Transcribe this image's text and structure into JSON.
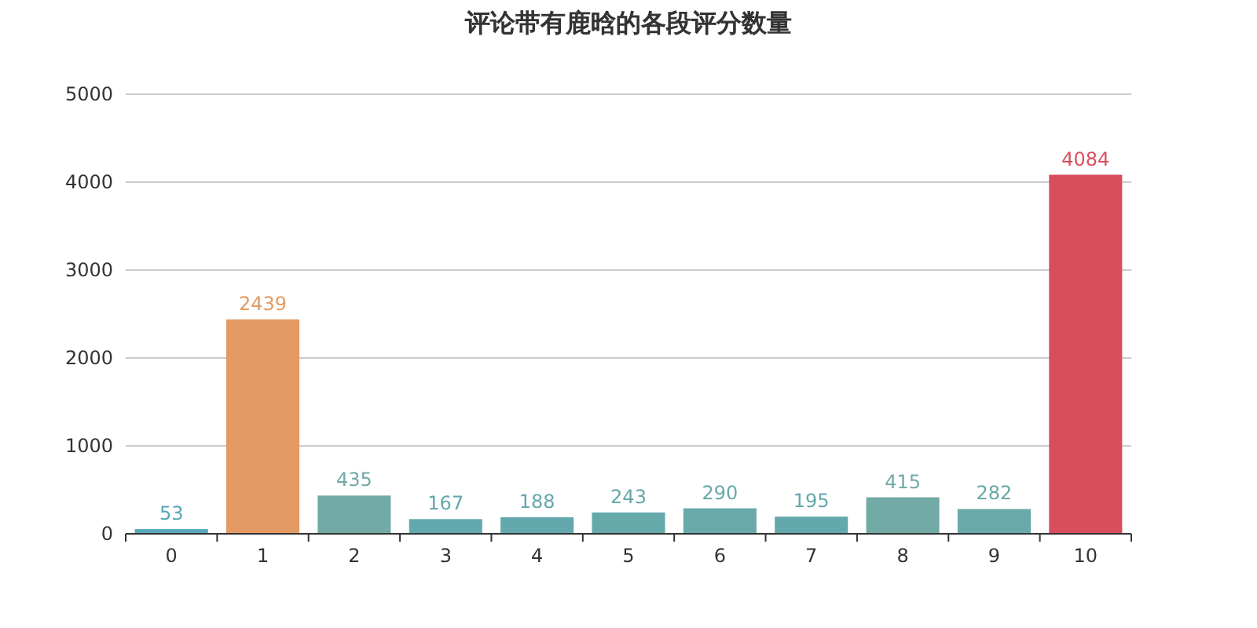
{
  "chart_data": {
    "type": "bar",
    "title": "评论带有鹿晗的各段评分数量",
    "categories": [
      "0",
      "1",
      "2",
      "3",
      "4",
      "5",
      "6",
      "7",
      "8",
      "9",
      "10"
    ],
    "values": [
      53,
      2439,
      435,
      167,
      188,
      243,
      290,
      195,
      415,
      282,
      4084
    ],
    "colors": [
      "#56a7b8",
      "#e39a63",
      "#72aaa5",
      "#62a8ad",
      "#63a8ad",
      "#66a9ab",
      "#69a9aa",
      "#63a8ad",
      "#72aaa5",
      "#69a9aa",
      "#d94e5d"
    ],
    "ylim": [
      0,
      5000
    ],
    "yticks": [
      0,
      1000,
      2000,
      3000,
      4000,
      5000
    ],
    "grid": "y",
    "data_labels": true
  }
}
